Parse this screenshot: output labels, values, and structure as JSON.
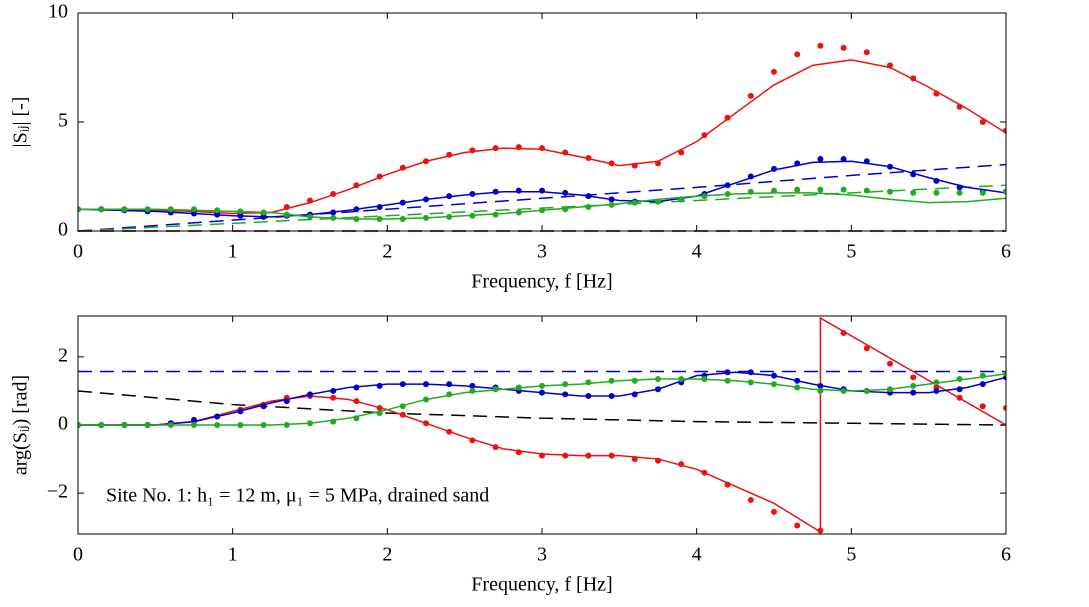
{
  "chart_data": [
    {
      "type": "line",
      "xlabel": "Frequency, f [Hz]",
      "ylabel": "|Sᵢⱼ| [-]",
      "xlim": [
        0,
        6
      ],
      "ylim": [
        0,
        10
      ],
      "xticks": [
        0,
        1,
        2,
        3,
        4,
        5,
        6
      ],
      "yticks": [
        0,
        5,
        10
      ],
      "series": [
        {
          "color": "#0000cc",
          "style": "dashed",
          "x": [
            0,
            1,
            2,
            3,
            4,
            5,
            6
          ],
          "values": [
            0,
            0.5,
            1.0,
            1.5,
            2.0,
            2.55,
            3.05
          ]
        },
        {
          "color": "#22aa22",
          "style": "dashed",
          "x": [
            0,
            1,
            2,
            3,
            4,
            5,
            6
          ],
          "values": [
            0,
            0.35,
            0.7,
            1.05,
            1.4,
            1.75,
            2.1
          ]
        },
        {
          "color": "#000000",
          "style": "dashed",
          "x": [
            0,
            6
          ],
          "values": [
            0,
            0
          ]
        },
        {
          "color": "#ee1111",
          "style": "dashed",
          "x": [
            0,
            6
          ],
          "values": [
            0,
            0
          ]
        },
        {
          "color": "#ee1111",
          "style": "solid",
          "x": [
            0,
            0.25,
            0.5,
            0.75,
            1,
            1.25,
            1.5,
            1.75,
            2,
            2.25,
            2.5,
            2.75,
            3,
            3.25,
            3.5,
            3.75,
            4,
            4.25,
            4.5,
            4.75,
            5,
            5.25,
            5.5,
            5.75,
            6
          ],
          "values": [
            1.0,
            1.0,
            0.95,
            0.9,
            0.8,
            0.85,
            1.3,
            1.9,
            2.6,
            3.2,
            3.6,
            3.8,
            3.75,
            3.4,
            3.0,
            3.2,
            4.1,
            5.4,
            6.7,
            7.6,
            7.85,
            7.5,
            6.6,
            5.6,
            4.5
          ]
        },
        {
          "color": "#0000cc",
          "style": "solid",
          "x": [
            0,
            0.25,
            0.5,
            0.75,
            1,
            1.25,
            1.5,
            1.75,
            2,
            2.25,
            2.5,
            2.75,
            3,
            3.25,
            3.5,
            3.75,
            4,
            4.25,
            4.5,
            4.75,
            5,
            5.25,
            5.5,
            5.75,
            6
          ],
          "values": [
            1.0,
            0.95,
            0.9,
            0.8,
            0.7,
            0.65,
            0.75,
            0.95,
            1.2,
            1.45,
            1.65,
            1.8,
            1.8,
            1.65,
            1.4,
            1.35,
            1.6,
            2.2,
            2.8,
            3.15,
            3.2,
            2.95,
            2.45,
            2.0,
            1.75
          ]
        },
        {
          "color": "#22aa22",
          "style": "solid",
          "x": [
            0,
            0.25,
            0.5,
            0.75,
            1,
            1.25,
            1.5,
            1.75,
            2,
            2.25,
            2.5,
            2.75,
            3,
            3.25,
            3.5,
            3.75,
            4,
            4.25,
            4.5,
            4.75,
            5,
            5.25,
            5.5,
            5.75,
            6
          ],
          "values": [
            1.0,
            1.0,
            1.0,
            0.95,
            0.9,
            0.85,
            0.65,
            0.55,
            0.55,
            0.6,
            0.7,
            0.8,
            0.95,
            1.1,
            1.25,
            1.45,
            1.6,
            1.7,
            1.75,
            1.75,
            1.65,
            1.45,
            1.3,
            1.35,
            1.5
          ]
        },
        {
          "color": "#ee1111",
          "style": "dots",
          "x": [
            0,
            0.15,
            0.3,
            0.45,
            0.6,
            0.75,
            0.9,
            1.05,
            1.2,
            1.35,
            1.5,
            1.65,
            1.8,
            1.95,
            2.1,
            2.25,
            2.4,
            2.55,
            2.7,
            2.85,
            3,
            3.15,
            3.3,
            3.45,
            3.6,
            3.75,
            3.9,
            4.05,
            4.2,
            4.35,
            4.5,
            4.65,
            4.8,
            4.95,
            5.1,
            5.25,
            5.4,
            5.55,
            5.7,
            5.85,
            6
          ],
          "values": [
            1,
            1,
            1,
            0.95,
            0.95,
            0.9,
            0.85,
            0.8,
            0.8,
            1.1,
            1.4,
            1.7,
            2.1,
            2.5,
            2.9,
            3.2,
            3.5,
            3.7,
            3.8,
            3.85,
            3.8,
            3.6,
            3.35,
            3.1,
            3.0,
            3.1,
            3.6,
            4.4,
            5.2,
            6.2,
            7.3,
            8.1,
            8.5,
            8.4,
            8.2,
            7.6,
            7.0,
            6.3,
            5.7,
            5.0,
            4.6
          ]
        },
        {
          "color": "#0000cc",
          "style": "dots",
          "x": [
            0,
            0.15,
            0.3,
            0.45,
            0.6,
            0.75,
            0.9,
            1.05,
            1.2,
            1.35,
            1.5,
            1.65,
            1.8,
            1.95,
            2.1,
            2.25,
            2.4,
            2.55,
            2.7,
            2.85,
            3,
            3.15,
            3.3,
            3.45,
            3.6,
            3.75,
            3.9,
            4.05,
            4.2,
            4.35,
            4.5,
            4.65,
            4.8,
            4.95,
            5.1,
            5.25,
            5.4,
            5.55,
            5.7,
            5.85,
            6
          ],
          "values": [
            1,
            1,
            0.95,
            0.9,
            0.85,
            0.8,
            0.75,
            0.7,
            0.65,
            0.7,
            0.75,
            0.85,
            1.0,
            1.1,
            1.3,
            1.45,
            1.6,
            1.7,
            1.8,
            1.85,
            1.85,
            1.75,
            1.6,
            1.45,
            1.35,
            1.35,
            1.45,
            1.7,
            2.1,
            2.5,
            2.85,
            3.1,
            3.3,
            3.3,
            3.2,
            2.95,
            2.6,
            2.3,
            2.0,
            1.8,
            1.8
          ]
        },
        {
          "color": "#22aa22",
          "style": "dots",
          "x": [
            0,
            0.15,
            0.3,
            0.45,
            0.6,
            0.75,
            0.9,
            1.05,
            1.2,
            1.35,
            1.5,
            1.65,
            1.8,
            1.95,
            2.1,
            2.25,
            2.4,
            2.55,
            2.7,
            2.85,
            3,
            3.15,
            3.3,
            3.45,
            3.6,
            3.75,
            3.9,
            4.05,
            4.2,
            4.35,
            4.5,
            4.65,
            4.8,
            4.95,
            5.1,
            5.25,
            5.4,
            5.55,
            5.7,
            5.85,
            6
          ],
          "values": [
            1,
            1,
            1,
            1,
            1,
            1,
            0.95,
            0.9,
            0.85,
            0.75,
            0.65,
            0.6,
            0.55,
            0.55,
            0.55,
            0.6,
            0.65,
            0.7,
            0.75,
            0.85,
            0.95,
            1.0,
            1.1,
            1.2,
            1.3,
            1.35,
            1.45,
            1.6,
            1.7,
            1.8,
            1.85,
            1.9,
            1.9,
            1.9,
            1.85,
            1.8,
            1.75,
            1.75,
            1.75,
            1.75,
            1.8
          ]
        }
      ]
    },
    {
      "type": "line",
      "xlabel": "Frequency, f [Hz]",
      "ylabel": "arg(Sᵢⱼ) [rad]",
      "annotation": "Site No. 1: h₁ = 12 m, μ₁ = 5 MPa, drained sand",
      "xlim": [
        0,
        6
      ],
      "ylim": [
        -3.2,
        3.2
      ],
      "xticks": [
        0,
        1,
        2,
        3,
        4,
        5,
        6
      ],
      "yticks": [
        {
          "value": -2,
          "label": "−2"
        },
        0,
        2
      ],
      "series": [
        {
          "color": "#0000cc",
          "style": "dashed",
          "x": [
            0,
            6
          ],
          "values": [
            1.57,
            1.57
          ]
        },
        {
          "color": "#000000",
          "style": "dashed",
          "x": [
            0,
            1,
            2,
            3,
            4,
            5,
            6
          ],
          "values": [
            1.0,
            0.6,
            0.35,
            0.2,
            0.1,
            0.05,
            0.0
          ]
        },
        {
          "color": "#ee1111",
          "style": "solid",
          "x": [
            0,
            0.25,
            0.5,
            0.75,
            1,
            1.25,
            1.5,
            1.75,
            2,
            2.25,
            2.5,
            2.75,
            3,
            3.25,
            3.5,
            3.75,
            4,
            4.25,
            4.5,
            4.8,
            4.8,
            6
          ],
          "values": [
            0,
            0,
            0,
            0.1,
            0.4,
            0.7,
            0.85,
            0.75,
            0.45,
            0.05,
            -0.35,
            -0.7,
            -0.85,
            -0.9,
            -0.9,
            -1.0,
            -1.3,
            -1.8,
            -2.3,
            -3.14,
            3.14,
            0
          ]
        },
        {
          "color": "#0000cc",
          "style": "solid",
          "x": [
            0,
            0.25,
            0.5,
            0.75,
            1,
            1.25,
            1.5,
            1.75,
            2,
            2.25,
            2.5,
            2.75,
            3,
            3.25,
            3.5,
            3.75,
            4,
            4.25,
            4.5,
            4.75,
            5,
            5.25,
            5.5,
            5.75,
            6
          ],
          "values": [
            0,
            0,
            0,
            0.1,
            0.35,
            0.65,
            0.9,
            1.1,
            1.2,
            1.2,
            1.15,
            1.05,
            0.95,
            0.85,
            0.85,
            1.05,
            1.45,
            1.55,
            1.45,
            1.2,
            1.0,
            0.95,
            0.95,
            1.1,
            1.4
          ]
        },
        {
          "color": "#22aa22",
          "style": "solid",
          "x": [
            0,
            0.25,
            0.5,
            0.75,
            1,
            1.25,
            1.5,
            1.75,
            2,
            2.25,
            2.5,
            2.75,
            3,
            3.25,
            3.5,
            3.75,
            4,
            4.25,
            4.5,
            4.75,
            5,
            5.25,
            5.5,
            5.75,
            6
          ],
          "values": [
            0,
            0,
            0,
            0,
            0,
            0,
            0.05,
            0.2,
            0.45,
            0.75,
            0.95,
            1.05,
            1.15,
            1.2,
            1.3,
            1.35,
            1.35,
            1.3,
            1.2,
            1.05,
            1.0,
            1.05,
            1.2,
            1.35,
            1.5
          ]
        },
        {
          "color": "#ee1111",
          "style": "dots",
          "x": [
            0,
            0.15,
            0.3,
            0.45,
            0.6,
            0.75,
            0.9,
            1.05,
            1.2,
            1.35,
            1.5,
            1.65,
            1.8,
            1.95,
            2.1,
            2.25,
            2.4,
            2.55,
            2.7,
            2.85,
            3,
            3.15,
            3.3,
            3.45,
            3.6,
            3.75,
            3.9,
            4.05,
            4.2,
            4.35,
            4.5,
            4.65,
            4.8,
            4.95,
            5.1,
            5.25,
            5.4,
            5.55,
            5.7,
            5.85,
            6
          ],
          "values": [
            0,
            0,
            0,
            0,
            0.05,
            0.1,
            0.25,
            0.45,
            0.6,
            0.8,
            0.85,
            0.8,
            0.7,
            0.5,
            0.3,
            0.05,
            -0.2,
            -0.45,
            -0.65,
            -0.8,
            -0.9,
            -0.9,
            -0.9,
            -0.9,
            -1.0,
            -1.05,
            -1.15,
            -1.4,
            -1.75,
            -2.2,
            -2.55,
            -2.95,
            -3.1,
            2.7,
            2.25,
            1.8,
            1.4,
            1.1,
            0.8,
            0.55,
            0.5
          ]
        },
        {
          "color": "#0000cc",
          "style": "dots",
          "x": [
            0,
            0.15,
            0.3,
            0.45,
            0.6,
            0.75,
            0.9,
            1.05,
            1.2,
            1.35,
            1.5,
            1.65,
            1.8,
            1.95,
            2.1,
            2.25,
            2.4,
            2.55,
            2.7,
            2.85,
            3,
            3.15,
            3.3,
            3.45,
            3.6,
            3.75,
            3.9,
            4.05,
            4.2,
            4.35,
            4.5,
            4.65,
            4.8,
            4.95,
            5.1,
            5.25,
            5.4,
            5.55,
            5.7,
            5.85,
            6
          ],
          "values": [
            0,
            0,
            0,
            0,
            0.05,
            0.15,
            0.25,
            0.4,
            0.55,
            0.7,
            0.9,
            1.0,
            1.1,
            1.15,
            1.2,
            1.2,
            1.2,
            1.15,
            1.1,
            1.0,
            0.95,
            0.9,
            0.85,
            0.85,
            0.9,
            1.05,
            1.25,
            1.45,
            1.55,
            1.55,
            1.45,
            1.3,
            1.15,
            1.05,
            1.0,
            0.95,
            0.95,
            1.0,
            1.05,
            1.2,
            1.4
          ]
        },
        {
          "color": "#22aa22",
          "style": "dots",
          "x": [
            0,
            0.15,
            0.3,
            0.45,
            0.6,
            0.75,
            0.9,
            1.05,
            1.2,
            1.35,
            1.5,
            1.65,
            1.8,
            1.95,
            2.1,
            2.25,
            2.4,
            2.55,
            2.7,
            2.85,
            3,
            3.15,
            3.3,
            3.45,
            3.6,
            3.75,
            3.9,
            4.05,
            4.2,
            4.35,
            4.5,
            4.65,
            4.8,
            4.95,
            5.1,
            5.25,
            5.4,
            5.55,
            5.7,
            5.85,
            6
          ],
          "values": [
            0,
            0,
            0,
            0,
            0,
            0,
            0,
            0,
            0,
            0,
            0.05,
            0.1,
            0.2,
            0.35,
            0.55,
            0.75,
            0.9,
            1.0,
            1.05,
            1.1,
            1.15,
            1.2,
            1.25,
            1.3,
            1.3,
            1.35,
            1.35,
            1.35,
            1.3,
            1.25,
            1.2,
            1.1,
            1.0,
            1.0,
            1.0,
            1.05,
            1.15,
            1.25,
            1.35,
            1.45,
            1.5
          ]
        }
      ]
    }
  ]
}
